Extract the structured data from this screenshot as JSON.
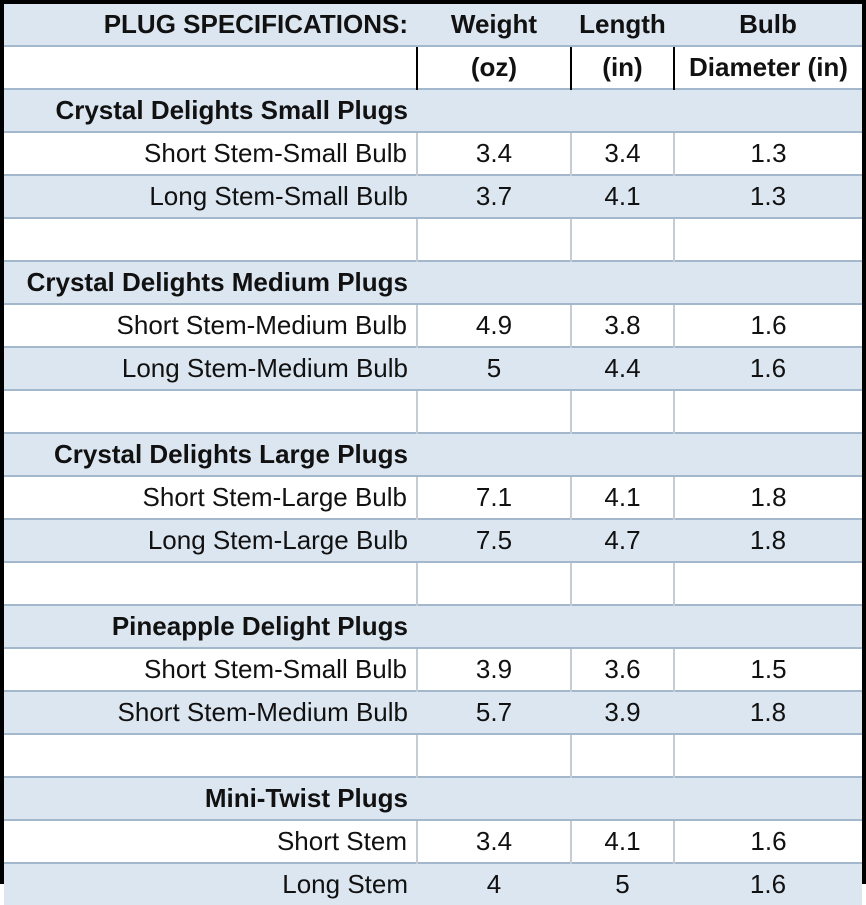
{
  "table": {
    "header": {
      "title": "PLUG SPECIFICATIONS:",
      "columns": [
        {
          "label": "Weight",
          "unit": "(oz)"
        },
        {
          "label": "Length",
          "unit": "(in)"
        },
        {
          "label": "Bulb",
          "unit": "Diameter (in)"
        }
      ]
    },
    "sections": [
      {
        "name": "Crystal Delights Small Plugs",
        "rows": [
          {
            "label": "Short Stem-Small Bulb",
            "weight": "3.4",
            "length": "3.4",
            "bulb": "1.3"
          },
          {
            "label": "Long Stem-Small Bulb",
            "weight": "3.7",
            "length": "4.1",
            "bulb": "1.3"
          }
        ]
      },
      {
        "name": "Crystal Delights Medium Plugs",
        "rows": [
          {
            "label": "Short Stem-Medium Bulb",
            "weight": "4.9",
            "length": "3.8",
            "bulb": "1.6"
          },
          {
            "label": "Long Stem-Medium Bulb",
            "weight": "5",
            "length": "4.4",
            "bulb": "1.6"
          }
        ]
      },
      {
        "name": "Crystal Delights Large Plugs",
        "rows": [
          {
            "label": "Short Stem-Large Bulb",
            "weight": "7.1",
            "length": "4.1",
            "bulb": "1.8"
          },
          {
            "label": "Long Stem-Large Bulb",
            "weight": "7.5",
            "length": "4.7",
            "bulb": "1.8"
          }
        ]
      },
      {
        "name": "Pineapple Delight Plugs",
        "rows": [
          {
            "label": "Short Stem-Small Bulb",
            "weight": "3.9",
            "length": "3.6",
            "bulb": "1.5"
          },
          {
            "label": "Short Stem-Medium Bulb",
            "weight": "5.7",
            "length": "3.9",
            "bulb": "1.8"
          }
        ]
      },
      {
        "name": "Mini-Twist Plugs",
        "rows": [
          {
            "label": "Short Stem",
            "weight": "3.4",
            "length": "4.1",
            "bulb": "1.6"
          },
          {
            "label": "Long Stem",
            "weight": "4",
            "length": "5",
            "bulb": "1.6"
          }
        ]
      }
    ],
    "colors": {
      "band_blue": "#dce6f1",
      "grid_horizontal": "#a3b8cc",
      "grid_vertical": "#c5ccd4",
      "units_divider": "#000000",
      "outer_border": "#000000",
      "text": "#111111",
      "row_white": "#ffffff"
    }
  }
}
